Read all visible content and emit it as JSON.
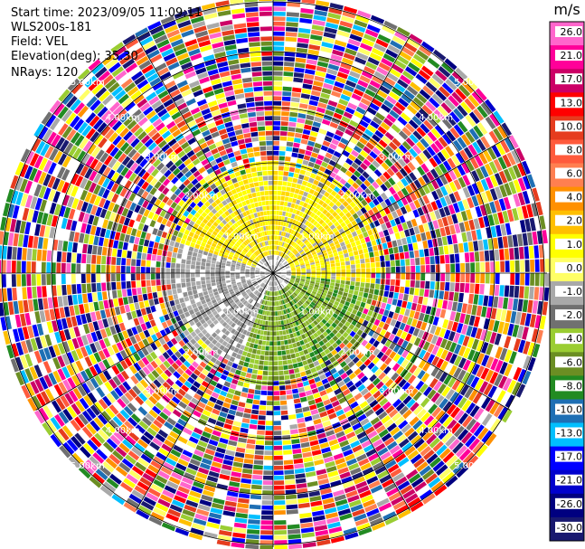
{
  "header": {
    "start_time": "Start time: 2023/09/05 11:09:11",
    "instrument": "WLS200s-181",
    "field": "Field: VEL",
    "elevation": "Elevation(deg): 35.30",
    "nrays": "NRays: 120"
  },
  "chart_data": {
    "type": "heatmap",
    "subtype": "polar PPI scan",
    "field": "VEL",
    "units": "m/s",
    "range_ring_labels": [
      "1.00km",
      "2.00km",
      "3.00km",
      "4.00km",
      "5.00km"
    ],
    "colorbar": {
      "title": "m/s",
      "tick_labels": [
        "26.0",
        "21.0",
        "17.0",
        "13.0",
        "10.0",
        "8.0",
        "6.0",
        "4.0",
        "2.0",
        "1.0",
        "0.0",
        "-1.0",
        "-2.0",
        "-4.0",
        "-6.0",
        "-8.0",
        "-10.0",
        "-13.0",
        "-17.0",
        "-21.0",
        "-26.0",
        "-30.0"
      ],
      "colors": [
        "#ff66cc",
        "#ff0099",
        "#cc0066",
        "#ff0000",
        "#e63c1e",
        "#ff5a3c",
        "#ff7f50",
        "#ff9000",
        "#ffbf00",
        "#ffff00",
        "#ffff66",
        "#a9a9a9",
        "#707070",
        "#9acd32",
        "#6b8e23",
        "#228b22",
        "#1e6fb4",
        "#00bfff",
        "#0000ff",
        "#0000cd",
        "#000080",
        "#191970"
      ]
    },
    "rays": 120,
    "grid": true
  }
}
